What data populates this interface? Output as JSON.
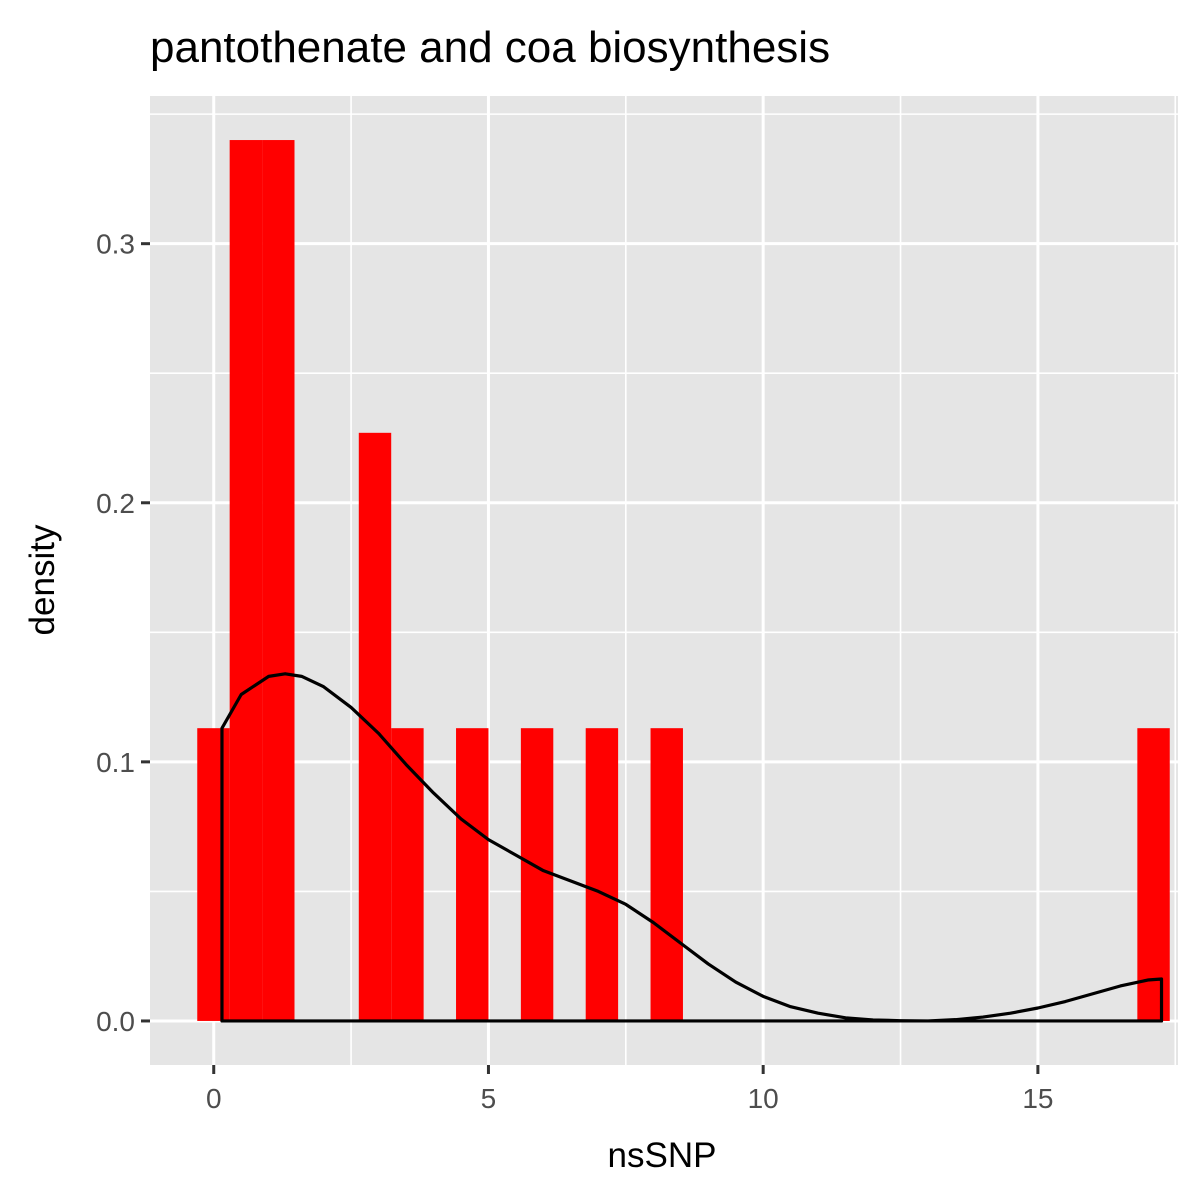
{
  "chart_data": {
    "type": "bar",
    "title": "pantothenate and coa biosynthesis",
    "xlabel": "nsSNP",
    "ylabel": "density",
    "xlim": [
      -1.16,
      17.55
    ],
    "ylim": [
      -0.017,
      0.357
    ],
    "x_ticks": [
      0,
      5,
      10,
      15
    ],
    "x_tick_labels": [
      "0",
      "5",
      "10",
      "15"
    ],
    "y_ticks": [
      0.0,
      0.1,
      0.2,
      0.3
    ],
    "y_tick_labels": [
      "0.0",
      "0.1",
      "0.2",
      "0.3"
    ],
    "grid": true,
    "histogram": {
      "bin_width": 0.59,
      "bins": [
        {
          "x0": -0.3,
          "x1": 0.29,
          "density": 0.113
        },
        {
          "x0": 0.29,
          "x1": 0.88,
          "density": 0.34
        },
        {
          "x0": 0.88,
          "x1": 1.47,
          "density": 0.34
        },
        {
          "x0": 2.64,
          "x1": 3.23,
          "density": 0.227
        },
        {
          "x0": 3.23,
          "x1": 3.82,
          "density": 0.113
        },
        {
          "x0": 4.41,
          "x1": 5.0,
          "density": 0.113
        },
        {
          "x0": 5.59,
          "x1": 6.18,
          "density": 0.113
        },
        {
          "x0": 6.77,
          "x1": 7.36,
          "density": 0.113
        },
        {
          "x0": 7.95,
          "x1": 8.54,
          "density": 0.113
        },
        {
          "x0": 16.81,
          "x1": 17.4,
          "density": 0.113
        }
      ],
      "fill": "#ff0000"
    },
    "density_curve": {
      "color": "#000000",
      "x": [
        0.15,
        0.5,
        1.0,
        1.3,
        1.6,
        2.0,
        2.5,
        3.0,
        3.5,
        4.0,
        4.5,
        5.0,
        5.5,
        6.0,
        6.5,
        7.0,
        7.5,
        8.0,
        8.5,
        9.0,
        9.5,
        10.0,
        10.5,
        11.0,
        11.5,
        12.0,
        12.5,
        13.0,
        13.5,
        14.0,
        14.5,
        15.0,
        15.5,
        16.0,
        16.5,
        17.0,
        17.25
      ],
      "y": [
        0.113,
        0.126,
        0.133,
        0.134,
        0.133,
        0.129,
        0.121,
        0.111,
        0.099,
        0.088,
        0.078,
        0.07,
        0.064,
        0.058,
        0.054,
        0.05,
        0.045,
        0.038,
        0.03,
        0.022,
        0.015,
        0.0095,
        0.0055,
        0.003,
        0.0012,
        0.0004,
        0.0001,
        0.0,
        0.0005,
        0.0015,
        0.003,
        0.005,
        0.0075,
        0.0105,
        0.0135,
        0.0158,
        0.0162
      ]
    },
    "colors": {
      "panel_background": "#e5e5e5",
      "grid": "#ffffff",
      "bar": "#ff0000",
      "line": "#000000"
    }
  }
}
